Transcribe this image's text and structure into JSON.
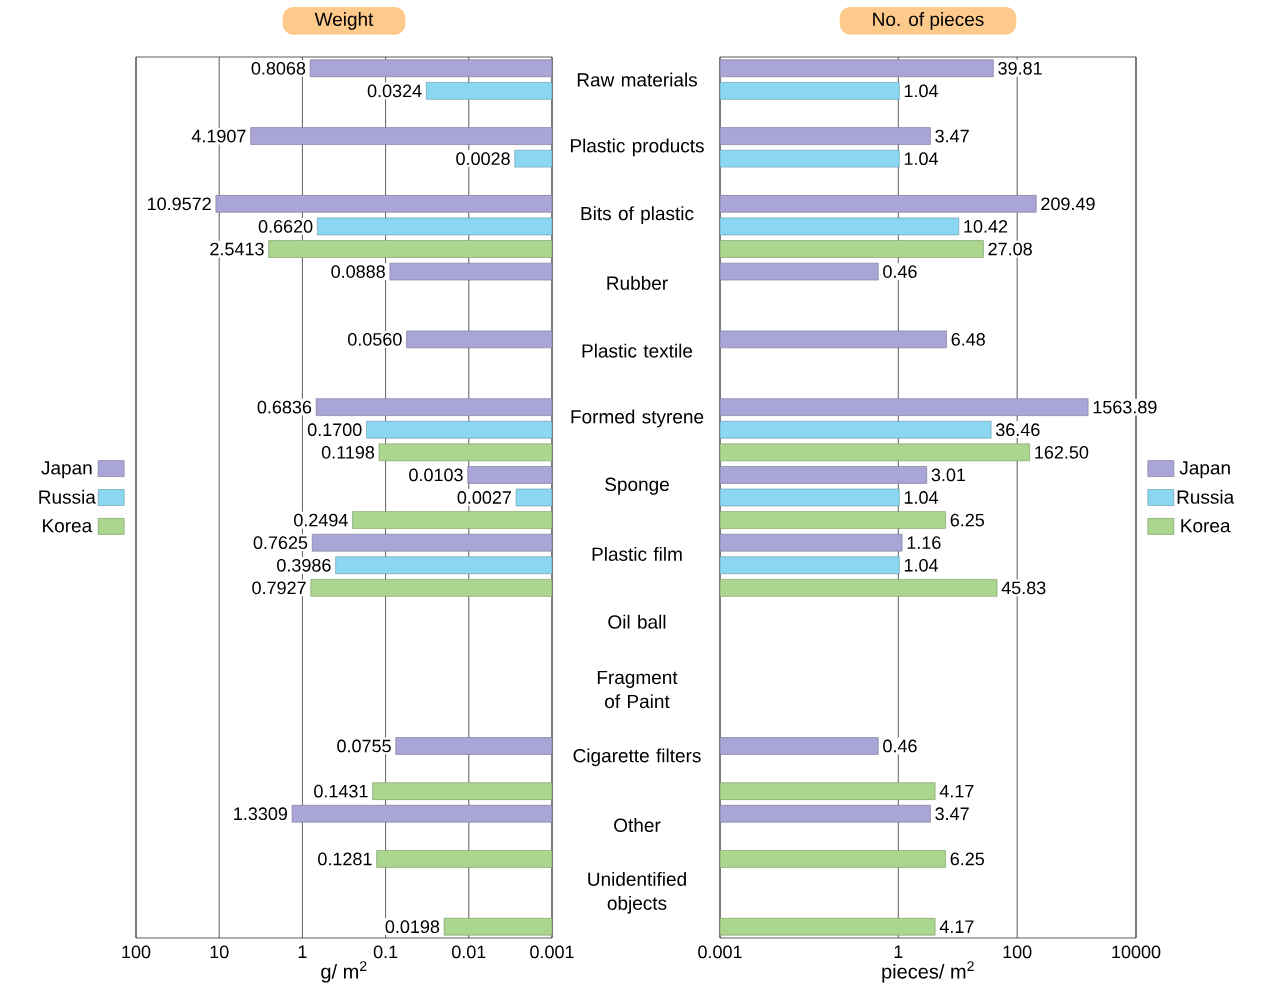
{
  "chart_data": [
    {
      "type": "bar",
      "orientation": "horizontal",
      "log": "x",
      "title": "Weight",
      "xlabel": "g/ m$^{2}$",
      "categories": [
        "Raw materials",
        "Plastic products",
        "Bits of plastic",
        "Rubber",
        "Plastic textile",
        "Formed styrene",
        "Sponge",
        "Plastic film",
        "Oil ball",
        "Fragment of Paint",
        "Cigarette filters",
        "Other",
        "Unidentified objects"
      ],
      "xlim": [
        100,
        0.001
      ],
      "xticks": [
        100,
        10,
        1,
        0.1,
        0.01,
        0.001
      ],
      "grid": "x",
      "legend": "left",
      "series": [
        {
          "name": "Japan",
          "color": "#a9a5d6",
          "values": [
            0.8068,
            4.1907,
            10.9572,
            0.0888,
            0.056,
            0.6836,
            0.0103,
            0.7625,
            null,
            null,
            0.0755,
            1.3309,
            null
          ],
          "value_labels": [
            "0.8068",
            "4.1907",
            "10.9572",
            "0.0888",
            "0.0560",
            "0.6836",
            "0.0103",
            "0.7625",
            null,
            null,
            "0.0755",
            "1.3309",
            null
          ]
        },
        {
          "name": "Russia",
          "color": "#8bd7f2",
          "values": [
            0.0324,
            0.0028,
            0.662,
            null,
            null,
            0.17,
            0.0027,
            0.3986,
            null,
            null,
            null,
            null,
            null
          ],
          "value_labels": [
            "0.0324",
            "0.0028",
            "0.6620",
            null,
            null,
            "0.1700",
            "0.0027",
            "0.3986",
            null,
            null,
            null,
            null,
            null
          ]
        },
        {
          "name": "Korea",
          "color": "#abd68e",
          "values": [
            null,
            null,
            2.5413,
            null,
            null,
            0.1198,
            0.2494,
            0.7927,
            null,
            null,
            0.1431,
            0.1281,
            0.0198
          ],
          "value_labels": [
            null,
            null,
            "2.5413",
            null,
            null,
            "0.1198",
            "0.2494",
            "0.7927",
            null,
            null,
            "0.1431",
            "0.1281",
            "0.0198"
          ]
        }
      ]
    },
    {
      "type": "bar",
      "orientation": "horizontal",
      "log": "x",
      "title": "No. of pieces",
      "xlabel": "pieces/ m$^{2}$",
      "xlim": [
        0.001,
        10000
      ],
      "xticks": [
        0.001,
        1,
        100,
        10000
      ],
      "grid": "x",
      "legend": "right",
      "tick_labels": "x",
      "series": [
        {
          "name": "Japan",
          "color": "#a9a5d6",
          "values": [
            39.81,
            3.47,
            209.49,
            0.46,
            6.48,
            1563.89,
            3.01,
            1.16,
            null,
            null,
            0.46,
            3.47,
            null
          ],
          "value_labels": [
            "39.81",
            "3.47",
            "209.49",
            "0.46",
            "6.48",
            "1563.89",
            "3.01",
            "1.16",
            null,
            null,
            "0.46",
            "3.47",
            null
          ]
        },
        {
          "name": "Russia",
          "color": "#8bd7f2",
          "values": [
            1.04,
            1.04,
            10.42,
            null,
            null,
            36.46,
            1.04,
            1.04,
            null,
            null,
            null,
            null,
            null
          ],
          "value_labels": [
            "1.04",
            "1.04",
            "10.42",
            null,
            null,
            "36.46",
            "1.04",
            "1.04",
            null,
            null,
            null,
            null,
            null
          ]
        },
        {
          "name": "Korea",
          "color": "#abd68e",
          "values": [
            null,
            null,
            27.08,
            null,
            null,
            162.5,
            6.25,
            45.83,
            null,
            null,
            4.17,
            6.25,
            4.17
          ],
          "value_labels": [
            null,
            null,
            "27.08",
            null,
            null,
            "162.50",
            "6.25",
            "45.83",
            null,
            null,
            "4.17",
            "6.25",
            "4.17"
          ]
        }
      ]
    }
  ]
}
